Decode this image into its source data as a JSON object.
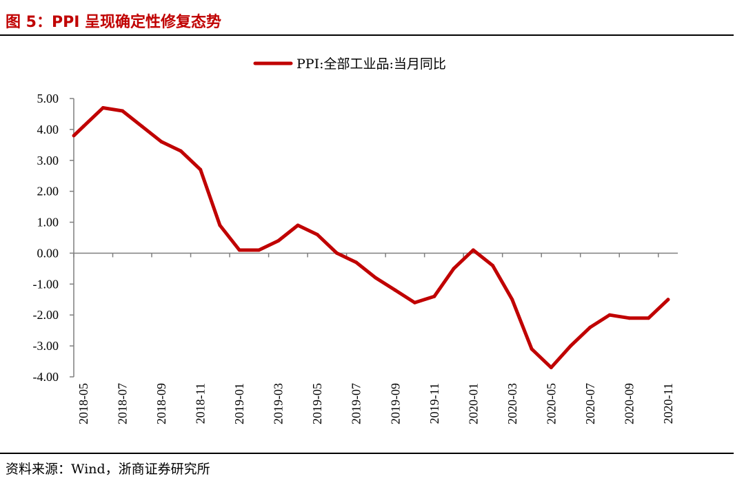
{
  "header": {
    "title": "图 5：PPI 呈现确定性修复态势"
  },
  "footer": {
    "source": "资料来源：Wind，浙商证券研究所"
  },
  "chart_data": {
    "type": "line",
    "title": "",
    "xlabel": "",
    "ylabel": "",
    "ylim": [
      -4.0,
      5.0
    ],
    "y_ticks": [
      "5.00",
      "4.00",
      "3.00",
      "2.00",
      "1.00",
      "0.00",
      "-1.00",
      "-2.00",
      "-3.00",
      "-4.00"
    ],
    "x_tick_labels": [
      "2018-05",
      "2018-07",
      "2018-09",
      "2018-11",
      "2019-01",
      "2019-03",
      "2019-05",
      "2019-07",
      "2019-09",
      "2019-11",
      "2020-01",
      "2020-03",
      "2020-05",
      "2020-07",
      "2020-09",
      "2020-11"
    ],
    "grid": false,
    "legend_position": "top-center",
    "line_color": "#c00000",
    "categories": [
      "2018-05",
      "2018-06",
      "2018-07",
      "2018-08",
      "2018-09",
      "2018-10",
      "2018-11",
      "2018-12",
      "2019-01",
      "2019-02",
      "2019-03",
      "2019-04",
      "2019-05",
      "2019-06",
      "2019-07",
      "2019-08",
      "2019-09",
      "2019-10",
      "2019-11",
      "2019-12",
      "2020-01",
      "2020-02",
      "2020-03",
      "2020-04",
      "2020-05",
      "2020-06",
      "2020-07",
      "2020-08",
      "2020-09",
      "2020-10",
      "2020-11"
    ],
    "series": [
      {
        "name": "PPI:全部工业品:当月同比",
        "values": [
          4.1,
          4.7,
          4.6,
          4.1,
          3.6,
          3.3,
          2.7,
          0.9,
          0.1,
          0.1,
          0.4,
          0.9,
          0.6,
          0.0,
          -0.3,
          -0.8,
          -1.2,
          -1.6,
          -1.4,
          -0.5,
          0.1,
          -0.4,
          -1.5,
          -3.1,
          -3.7,
          -3.0,
          -2.4,
          -2.0,
          -2.1,
          -2.1,
          -1.5
        ]
      }
    ]
  }
}
